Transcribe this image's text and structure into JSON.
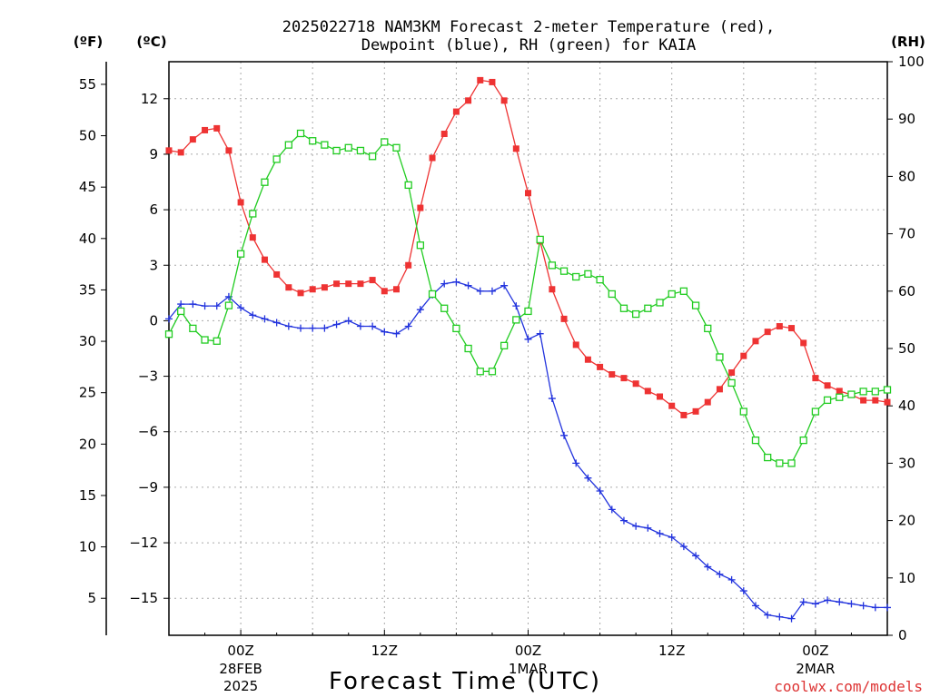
{
  "chart_data": {
    "type": "line",
    "title_line1": "2025022718 NAM3KM Forecast 2-meter Temperature (red),",
    "title_line2": "Dewpoint (blue), RH (green) for KAIA",
    "xlabel": "Forecast Time (UTC)",
    "credit": "coolwx.com/models",
    "unit_f": "(ºF)",
    "unit_c": "(ºC)",
    "unit_rh": "(RH)",
    "x_range_hours": [
      -6,
      54
    ],
    "x_ticks": [
      {
        "hour": 0,
        "line1": "00Z",
        "line2": "28FEB",
        "line3": "2025"
      },
      {
        "hour": 12,
        "line1": "12Z",
        "line2": "",
        "line3": ""
      },
      {
        "hour": 24,
        "line1": "00Z",
        "line2": "1MAR",
        "line3": ""
      },
      {
        "hour": 36,
        "line1": "12Z",
        "line2": "",
        "line3": ""
      },
      {
        "hour": 48,
        "line1": "00Z",
        "line2": "2MAR",
        "line3": ""
      }
    ],
    "celsius_axis": {
      "range": [
        -17,
        14
      ],
      "ticks": [
        "12",
        "9",
        "6",
        "3",
        "0",
        "−3",
        "−6",
        "−9",
        "−12",
        "−15"
      ],
      "tick_values": [
        12,
        9,
        6,
        3,
        0,
        -3,
        -6,
        -9,
        -12,
        -15
      ]
    },
    "fahrenheit_axis": {
      "ticks": [
        "55",
        "50",
        "45",
        "40",
        "35",
        "30",
        "25",
        "20",
        "15",
        "10",
        "5"
      ],
      "tick_values": [
        55,
        50,
        45,
        40,
        35,
        30,
        25,
        20,
        15,
        10,
        5
      ]
    },
    "rh_axis": {
      "range": [
        0,
        100
      ],
      "ticks": [
        "100",
        "90",
        "80",
        "70",
        "60",
        "50",
        "40",
        "30",
        "20",
        "10",
        "0"
      ],
      "tick_values": [
        100,
        90,
        80,
        70,
        60,
        50,
        40,
        30,
        20,
        10,
        0
      ]
    },
    "series": [
      {
        "key": "temperature",
        "unit": "C",
        "color": "#ee3333",
        "marker": "filled-square",
        "x": [
          -6,
          -5,
          -4,
          -3,
          -2,
          -1,
          0,
          1,
          2,
          3,
          4,
          5,
          6,
          7,
          8,
          9,
          10,
          11,
          12,
          13,
          14,
          15,
          16,
          17,
          18,
          19,
          20,
          21,
          22,
          23,
          24,
          25,
          26,
          27,
          28,
          29,
          30,
          31,
          32,
          33,
          34,
          35,
          36,
          37,
          38,
          39,
          40,
          41,
          42,
          43,
          44,
          45,
          46,
          47,
          48,
          49,
          50,
          51,
          52,
          53,
          54
        ],
        "values": [
          9.2,
          9.1,
          9.8,
          10.3,
          10.4,
          9.2,
          6.4,
          4.5,
          3.3,
          2.5,
          1.8,
          1.5,
          1.7,
          1.8,
          2.0,
          2.0,
          2.0,
          2.2,
          1.6,
          1.7,
          3.0,
          6.1,
          8.8,
          10.1,
          11.3,
          11.9,
          13.0,
          12.9,
          11.9,
          9.3,
          6.9,
          4.3,
          1.7,
          0.1,
          -1.3,
          -2.1,
          -2.5,
          -2.9,
          -3.1,
          -3.4,
          -3.8,
          -4.1,
          -4.6,
          -5.1,
          -4.9,
          -4.4,
          -3.7,
          -2.8,
          -1.9,
          -1.1,
          -0.6,
          -0.3,
          -0.4,
          -1.2,
          -3.1,
          -3.5,
          -3.8,
          -4.0,
          -4.3,
          -4.3,
          -4.4
        ]
      },
      {
        "key": "dewpoint",
        "unit": "C",
        "color": "#2233dd",
        "marker": "plus",
        "x": [
          -6,
          -5,
          -4,
          -3,
          -2,
          -1,
          0,
          1,
          2,
          3,
          4,
          5,
          6,
          7,
          8,
          9,
          10,
          11,
          12,
          13,
          14,
          15,
          16,
          17,
          18,
          19,
          20,
          21,
          22,
          23,
          24,
          25,
          26,
          27,
          28,
          29,
          30,
          31,
          32,
          33,
          34,
          35,
          36,
          37,
          38,
          39,
          40,
          41,
          42,
          43,
          44,
          45,
          46,
          47,
          48,
          49,
          50,
          51,
          52,
          53,
          54
        ],
        "values": [
          0.1,
          0.9,
          0.9,
          0.8,
          0.8,
          1.3,
          0.7,
          0.3,
          0.1,
          -0.1,
          -0.3,
          -0.4,
          -0.4,
          -0.4,
          -0.2,
          0.0,
          -0.3,
          -0.3,
          -0.6,
          -0.7,
          -0.3,
          0.6,
          1.4,
          2.0,
          2.1,
          1.9,
          1.6,
          1.6,
          1.9,
          0.8,
          -1.0,
          -0.7,
          -4.2,
          -6.2,
          -7.7,
          -8.5,
          -9.2,
          -10.2,
          -10.8,
          -11.1,
          -11.2,
          -11.5,
          -11.7,
          -12.2,
          -12.7,
          -13.3,
          -13.7,
          -14.0,
          -14.6,
          -15.4,
          -15.9,
          -16.0,
          -16.1,
          -15.2,
          -15.3,
          -15.1,
          -15.2,
          -15.3,
          -15.4,
          -15.5,
          -15.5
        ]
      },
      {
        "key": "rh",
        "unit": "RH",
        "color": "#22cc22",
        "marker": "open-square",
        "x": [
          -6,
          -5,
          -4,
          -3,
          -2,
          -1,
          0,
          1,
          2,
          3,
          4,
          5,
          6,
          7,
          8,
          9,
          10,
          11,
          12,
          13,
          14,
          15,
          16,
          17,
          18,
          19,
          20,
          21,
          22,
          23,
          24,
          25,
          26,
          27,
          28,
          29,
          30,
          31,
          32,
          33,
          34,
          35,
          36,
          37,
          38,
          39,
          40,
          41,
          42,
          43,
          44,
          45,
          46,
          47,
          48,
          49,
          50,
          51,
          52,
          53,
          54
        ],
        "values": [
          52.5,
          56.5,
          53.5,
          51.5,
          51.3,
          57.5,
          66.5,
          73.5,
          79.0,
          83.0,
          85.5,
          87.5,
          86.2,
          85.5,
          84.5,
          85.0,
          84.5,
          83.5,
          86.0,
          85.0,
          78.5,
          68.0,
          59.5,
          57.0,
          53.5,
          50.0,
          46.0,
          46.0,
          50.5,
          55.0,
          56.5,
          69.0,
          64.5,
          63.5,
          62.5,
          63.0,
          62.0,
          59.5,
          57.0,
          56.0,
          57.0,
          58.0,
          59.5,
          60.0,
          57.5,
          53.5,
          48.5,
          44.0,
          39.0,
          34.0,
          31.0,
          30.0,
          30.0,
          34.0,
          39.0,
          41.0,
          41.5,
          42.0,
          42.5,
          42.5,
          42.8
        ]
      }
    ]
  }
}
